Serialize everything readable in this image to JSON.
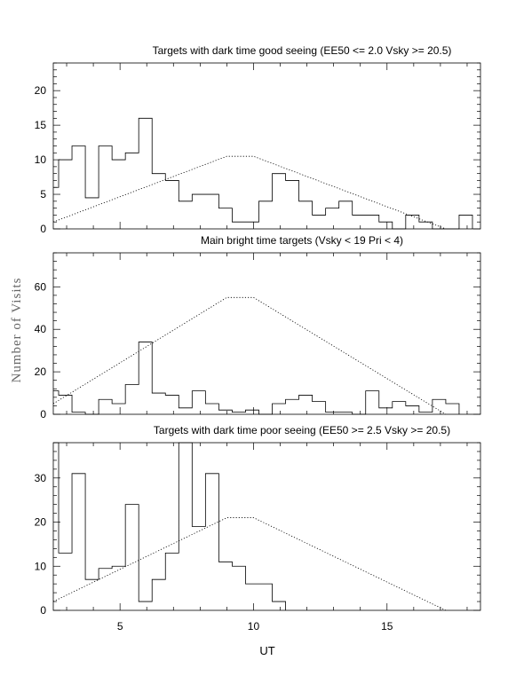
{
  "figure": {
    "ylabel": "Number of Visits",
    "xlabel": "UT",
    "xlim": [
      2.5,
      18.5
    ],
    "xticks": [
      "5",
      "10",
      "15"
    ]
  },
  "chart_data": [
    {
      "type": "histogram",
      "title": "Targets with dark time good seeing (EE50 <= 2.0 Vsky >= 20.5)",
      "ylim": [
        0,
        24
      ],
      "yticks": [
        "0",
        "5",
        "10",
        "15",
        "20"
      ],
      "bin_width": 0.5,
      "hist_bins": [
        [
          2.5,
          6
        ],
        [
          2.7,
          10
        ],
        [
          3.2,
          12
        ],
        [
          3.7,
          4.5
        ],
        [
          4.2,
          12
        ],
        [
          4.7,
          10
        ],
        [
          5.2,
          11
        ],
        [
          5.7,
          16
        ],
        [
          6.2,
          8
        ],
        [
          6.7,
          7
        ],
        [
          7.2,
          4
        ],
        [
          7.7,
          5
        ],
        [
          8.2,
          5
        ],
        [
          8.7,
          3
        ],
        [
          9.2,
          1
        ],
        [
          9.7,
          1
        ],
        [
          10.2,
          4
        ],
        [
          10.7,
          8
        ],
        [
          11.2,
          7
        ],
        [
          11.7,
          4
        ],
        [
          12.2,
          2
        ],
        [
          12.7,
          3
        ],
        [
          13.2,
          4
        ],
        [
          13.7,
          2
        ],
        [
          14.2,
          2
        ],
        [
          14.7,
          1
        ],
        [
          15.2,
          0
        ],
        [
          15.7,
          2
        ],
        [
          16.2,
          1
        ],
        [
          16.7,
          0
        ],
        [
          17.2,
          0
        ],
        [
          17.7,
          2
        ],
        [
          18.2,
          0
        ]
      ],
      "hist_end": 18.2,
      "envelope": [
        [
          2.5,
          1
        ],
        [
          9.0,
          10.5
        ],
        [
          10.0,
          10.5
        ],
        [
          17.2,
          0
        ]
      ]
    },
    {
      "type": "histogram",
      "title": "Main bright time targets (Vsky < 19 Pri < 4)",
      "ylim": [
        0,
        76
      ],
      "yticks": [
        "0",
        "20",
        "40",
        "60"
      ],
      "bin_width": 0.5,
      "hist_bins": [
        [
          2.5,
          11
        ],
        [
          2.7,
          9
        ],
        [
          3.2,
          1
        ],
        [
          3.7,
          0
        ],
        [
          4.2,
          7
        ],
        [
          4.7,
          5
        ],
        [
          5.2,
          14
        ],
        [
          5.7,
          34
        ],
        [
          6.2,
          10
        ],
        [
          6.7,
          9
        ],
        [
          7.2,
          3
        ],
        [
          7.7,
          11
        ],
        [
          8.2,
          5
        ],
        [
          8.7,
          2
        ],
        [
          9.2,
          1
        ],
        [
          9.7,
          2
        ],
        [
          10.2,
          0
        ],
        [
          10.7,
          5
        ],
        [
          11.2,
          7
        ],
        [
          11.7,
          9
        ],
        [
          12.2,
          6
        ],
        [
          12.7,
          1
        ],
        [
          13.2,
          1
        ],
        [
          13.7,
          0
        ],
        [
          14.2,
          11
        ],
        [
          14.7,
          3
        ],
        [
          15.2,
          6
        ],
        [
          15.7,
          4
        ],
        [
          16.2,
          1
        ],
        [
          16.7,
          7
        ],
        [
          17.2,
          5
        ],
        [
          17.7,
          0
        ]
      ],
      "hist_end": 17.7,
      "envelope": [
        [
          2.5,
          5
        ],
        [
          9.0,
          55
        ],
        [
          10.0,
          55
        ],
        [
          17.2,
          0
        ]
      ]
    },
    {
      "type": "histogram",
      "title": "Targets with dark time poor seeing (EE50 >= 2.5 Vsky >= 20.5)",
      "ylim": [
        0,
        38
      ],
      "yticks": [
        "0",
        "10",
        "20",
        "30"
      ],
      "bin_width": 0.5,
      "hist_bins": [
        [
          2.5,
          38
        ],
        [
          2.7,
          13
        ],
        [
          3.2,
          31
        ],
        [
          3.7,
          7
        ],
        [
          4.2,
          9.5
        ],
        [
          4.7,
          10
        ],
        [
          5.2,
          24
        ],
        [
          5.7,
          2
        ],
        [
          6.2,
          7
        ],
        [
          6.7,
          13
        ],
        [
          7.2,
          38
        ],
        [
          7.7,
          19
        ],
        [
          8.2,
          31
        ],
        [
          8.7,
          11
        ],
        [
          9.2,
          10
        ],
        [
          9.7,
          6
        ],
        [
          10.2,
          6
        ],
        [
          10.7,
          2
        ],
        [
          11.2,
          0
        ]
      ],
      "hist_end": 11.2,
      "envelope": [
        [
          2.5,
          2
        ],
        [
          9.0,
          21
        ],
        [
          10.0,
          21
        ],
        [
          17.2,
          0
        ]
      ]
    }
  ]
}
